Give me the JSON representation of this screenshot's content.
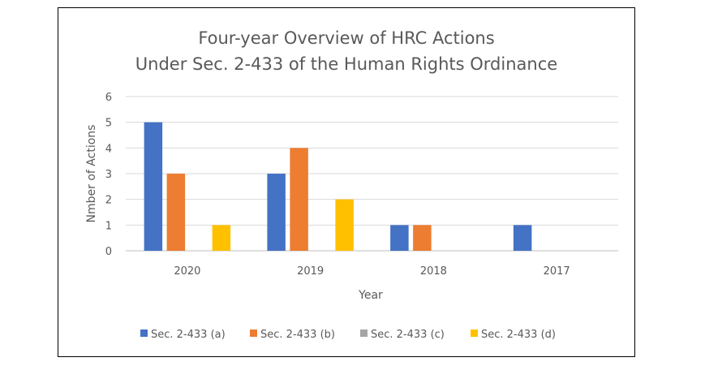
{
  "chart_data": {
    "type": "bar",
    "title_lines": [
      "Four-year Overview of HRC Actions",
      "Under Sec. 2-433 of the Human Rights Ordinance"
    ],
    "xlabel": "Year",
    "ylabel": "Nmber of Actions",
    "categories": [
      "2020",
      "2019",
      "2018",
      "2017"
    ],
    "ylim": [
      0,
      6
    ],
    "yticks": [
      0,
      1,
      2,
      3,
      4,
      5,
      6
    ],
    "grid": true,
    "legend_position": "bottom",
    "series": [
      {
        "name": "Sec. 2-433 (a)",
        "color": "#4472C4",
        "values": [
          5,
          3,
          1,
          1
        ]
      },
      {
        "name": "Sec. 2-433 (b)",
        "color": "#ED7D31",
        "values": [
          3,
          4,
          1,
          0
        ]
      },
      {
        "name": "Sec. 2-433 (c)",
        "color": "#A5A5A5",
        "values": [
          0,
          0,
          0,
          0
        ]
      },
      {
        "name": "Sec. 2-433 (d)",
        "color": "#FFC000",
        "values": [
          1,
          2,
          0,
          0
        ]
      }
    ]
  }
}
